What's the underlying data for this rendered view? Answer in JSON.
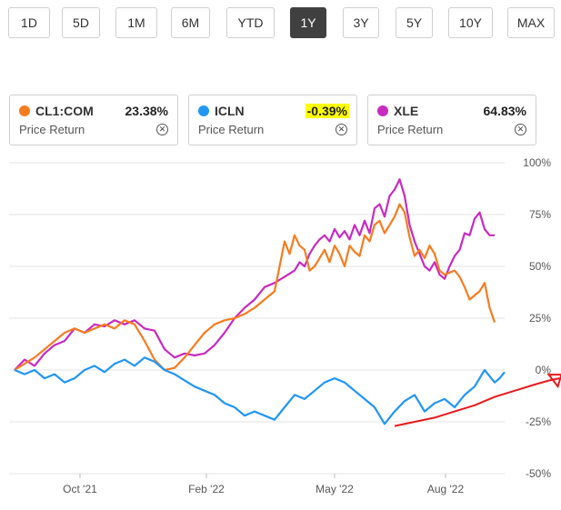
{
  "range_buttons": [
    {
      "label": "1D"
    },
    {
      "label": "5D"
    },
    {
      "label": "1M"
    },
    {
      "label": "6M"
    },
    {
      "label": "YTD"
    },
    {
      "label": "1Y"
    },
    {
      "label": "3Y"
    },
    {
      "label": "5Y"
    },
    {
      "label": "10Y"
    },
    {
      "label": "MAX"
    }
  ],
  "selected_range": "1Y",
  "legend_cards": [
    {
      "ticker": "CL1:COM",
      "value": "23.38%",
      "sub": "Price Return",
      "color": "#f57c1f",
      "highlight": false
    },
    {
      "ticker": "ICLN",
      "value": "-0.39%",
      "sub": "Price Return",
      "color": "#2196f3",
      "highlight": true
    },
    {
      "ticker": "XLE",
      "value": "64.83%",
      "sub": "Price Return",
      "color": "#c72bbf",
      "highlight": false
    }
  ],
  "close_icon": "circle-x-icon",
  "chart_data": {
    "type": "line",
    "y_tick_labels": [
      "100%",
      "75%",
      "50%",
      "25%",
      "0%",
      "-25%",
      "-50%"
    ],
    "x_tick_labels": [
      "Oct '21",
      "Feb '22",
      "May '22",
      "Aug '22"
    ],
    "ylim": [
      -50,
      100
    ],
    "grid": true,
    "series": [
      {
        "name": "XLE",
        "color": "#c72bbf",
        "points": [
          [
            0,
            0
          ],
          [
            2,
            5
          ],
          [
            4,
            2
          ],
          [
            6,
            8
          ],
          [
            8,
            12
          ],
          [
            10,
            14
          ],
          [
            12,
            20
          ],
          [
            14,
            18
          ],
          [
            16,
            22
          ],
          [
            18,
            21
          ],
          [
            20,
            24
          ],
          [
            22,
            22
          ],
          [
            24,
            24
          ],
          [
            26,
            20
          ],
          [
            28,
            19
          ],
          [
            30,
            10
          ],
          [
            32,
            6
          ],
          [
            34,
            8
          ],
          [
            36,
            7
          ],
          [
            38,
            8
          ],
          [
            40,
            12
          ],
          [
            42,
            18
          ],
          [
            44,
            25
          ],
          [
            46,
            30
          ],
          [
            48,
            34
          ],
          [
            50,
            40
          ],
          [
            52,
            42
          ],
          [
            54,
            45
          ],
          [
            56,
            48
          ],
          [
            57,
            52
          ],
          [
            58,
            50
          ],
          [
            59,
            56
          ],
          [
            60,
            60
          ],
          [
            61,
            63
          ],
          [
            62,
            65
          ],
          [
            63,
            62
          ],
          [
            64,
            68
          ],
          [
            65,
            64
          ],
          [
            66,
            67
          ],
          [
            67,
            63
          ],
          [
            68,
            70
          ],
          [
            69,
            65
          ],
          [
            70,
            72
          ],
          [
            71,
            66
          ],
          [
            72,
            78
          ],
          [
            73,
            80
          ],
          [
            74,
            74
          ],
          [
            75,
            84
          ],
          [
            76,
            87
          ],
          [
            77,
            92
          ],
          [
            78,
            84
          ],
          [
            79,
            70
          ],
          [
            80,
            62
          ],
          [
            81,
            56
          ],
          [
            82,
            50
          ],
          [
            83,
            48
          ],
          [
            84,
            52
          ],
          [
            85,
            46
          ],
          [
            86,
            44
          ],
          [
            87,
            50
          ],
          [
            88,
            55
          ],
          [
            89,
            58
          ],
          [
            90,
            66
          ],
          [
            91,
            65
          ],
          [
            92,
            73
          ],
          [
            93,
            76
          ],
          [
            94,
            68
          ],
          [
            95,
            65
          ],
          [
            96,
            65
          ]
        ]
      },
      {
        "name": "CL1:COM",
        "color": "#f57c1f",
        "points": [
          [
            0,
            0
          ],
          [
            2,
            3
          ],
          [
            4,
            6
          ],
          [
            6,
            10
          ],
          [
            8,
            14
          ],
          [
            10,
            18
          ],
          [
            12,
            20
          ],
          [
            14,
            18
          ],
          [
            16,
            20
          ],
          [
            18,
            22
          ],
          [
            20,
            20
          ],
          [
            22,
            24
          ],
          [
            24,
            22
          ],
          [
            26,
            14
          ],
          [
            28,
            5
          ],
          [
            30,
            0
          ],
          [
            32,
            1
          ],
          [
            34,
            6
          ],
          [
            36,
            12
          ],
          [
            38,
            18
          ],
          [
            40,
            22
          ],
          [
            42,
            24
          ],
          [
            44,
            25
          ],
          [
            46,
            27
          ],
          [
            48,
            30
          ],
          [
            50,
            34
          ],
          [
            52,
            38
          ],
          [
            53,
            50
          ],
          [
            54,
            62
          ],
          [
            55,
            56
          ],
          [
            56,
            65
          ],
          [
            57,
            60
          ],
          [
            58,
            58
          ],
          [
            59,
            48
          ],
          [
            60,
            50
          ],
          [
            61,
            54
          ],
          [
            62,
            58
          ],
          [
            63,
            52
          ],
          [
            64,
            60
          ],
          [
            65,
            56
          ],
          [
            66,
            50
          ],
          [
            67,
            60
          ],
          [
            68,
            57
          ],
          [
            69,
            55
          ],
          [
            70,
            65
          ],
          [
            71,
            62
          ],
          [
            72,
            70
          ],
          [
            73,
            72
          ],
          [
            74,
            66
          ],
          [
            75,
            70
          ],
          [
            76,
            74
          ],
          [
            77,
            80
          ],
          [
            78,
            76
          ],
          [
            79,
            64
          ],
          [
            80,
            55
          ],
          [
            81,
            58
          ],
          [
            82,
            54
          ],
          [
            83,
            60
          ],
          [
            84,
            56
          ],
          [
            85,
            48
          ],
          [
            86,
            46
          ],
          [
            87,
            47
          ],
          [
            88,
            48
          ],
          [
            89,
            45
          ],
          [
            90,
            40
          ],
          [
            91,
            34
          ],
          [
            92,
            36
          ],
          [
            93,
            38
          ],
          [
            94,
            42
          ],
          [
            95,
            30
          ],
          [
            96,
            23
          ]
        ]
      },
      {
        "name": "ICLN",
        "color": "#2196f3",
        "points": [
          [
            0,
            0
          ],
          [
            2,
            -2
          ],
          [
            4,
            0
          ],
          [
            6,
            -4
          ],
          [
            8,
            -2
          ],
          [
            10,
            -6
          ],
          [
            12,
            -4
          ],
          [
            14,
            0
          ],
          [
            16,
            2
          ],
          [
            18,
            -1
          ],
          [
            20,
            3
          ],
          [
            22,
            5
          ],
          [
            24,
            2
          ],
          [
            26,
            6
          ],
          [
            28,
            4
          ],
          [
            30,
            0
          ],
          [
            32,
            -2
          ],
          [
            34,
            -5
          ],
          [
            36,
            -8
          ],
          [
            38,
            -10
          ],
          [
            40,
            -12
          ],
          [
            42,
            -16
          ],
          [
            44,
            -18
          ],
          [
            46,
            -22
          ],
          [
            48,
            -20
          ],
          [
            50,
            -22
          ],
          [
            52,
            -24
          ],
          [
            54,
            -18
          ],
          [
            56,
            -12
          ],
          [
            58,
            -14
          ],
          [
            60,
            -10
          ],
          [
            62,
            -6
          ],
          [
            64,
            -4
          ],
          [
            66,
            -6
          ],
          [
            68,
            -10
          ],
          [
            70,
            -14
          ],
          [
            72,
            -18
          ],
          [
            74,
            -26
          ],
          [
            76,
            -20
          ],
          [
            78,
            -15
          ],
          [
            80,
            -12
          ],
          [
            81,
            -16
          ],
          [
            82,
            -20
          ],
          [
            84,
            -16
          ],
          [
            86,
            -14
          ],
          [
            88,
            -18
          ],
          [
            90,
            -12
          ],
          [
            92,
            -8
          ],
          [
            93,
            -4
          ],
          [
            94,
            0
          ],
          [
            95,
            -3
          ],
          [
            96,
            -6
          ],
          [
            97,
            -4
          ],
          [
            98,
            -1
          ]
        ]
      }
    ]
  },
  "annotation": {
    "color": "#e8191c",
    "points": [
      [
        76,
        -27
      ],
      [
        80,
        -25
      ],
      [
        84,
        -23
      ],
      [
        88,
        -20
      ],
      [
        92,
        -17
      ],
      [
        96,
        -13
      ],
      [
        100,
        -10
      ],
      [
        104,
        -7
      ],
      [
        107,
        -5
      ],
      [
        109,
        -4
      ]
    ]
  }
}
